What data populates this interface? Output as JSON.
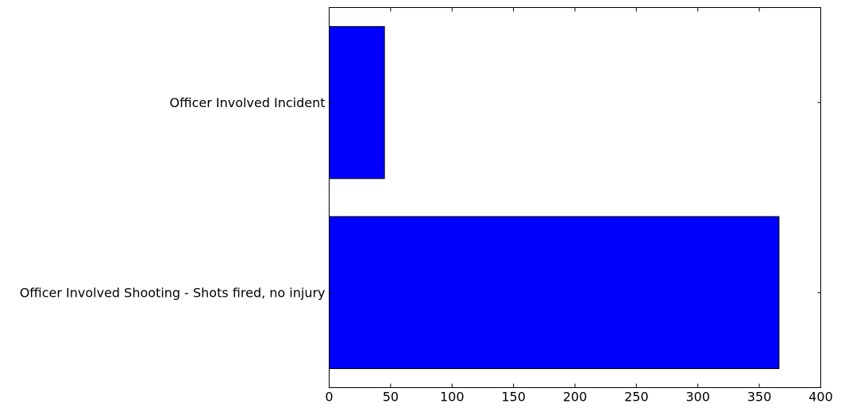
{
  "chart_data": {
    "type": "bar",
    "orientation": "horizontal",
    "categories": [
      "Officer Involved Incident",
      "Officer Involved Shooting - Shots fired, no injury"
    ],
    "values": [
      45,
      366
    ],
    "xlim": [
      0,
      400
    ],
    "x_ticks": [
      0,
      50,
      100,
      150,
      200,
      250,
      300,
      350,
      400
    ],
    "title": "",
    "xlabel": "",
    "ylabel": "",
    "grid": false,
    "legend": "none",
    "bar_color": "#0000ff",
    "edge_color": "#000000"
  }
}
